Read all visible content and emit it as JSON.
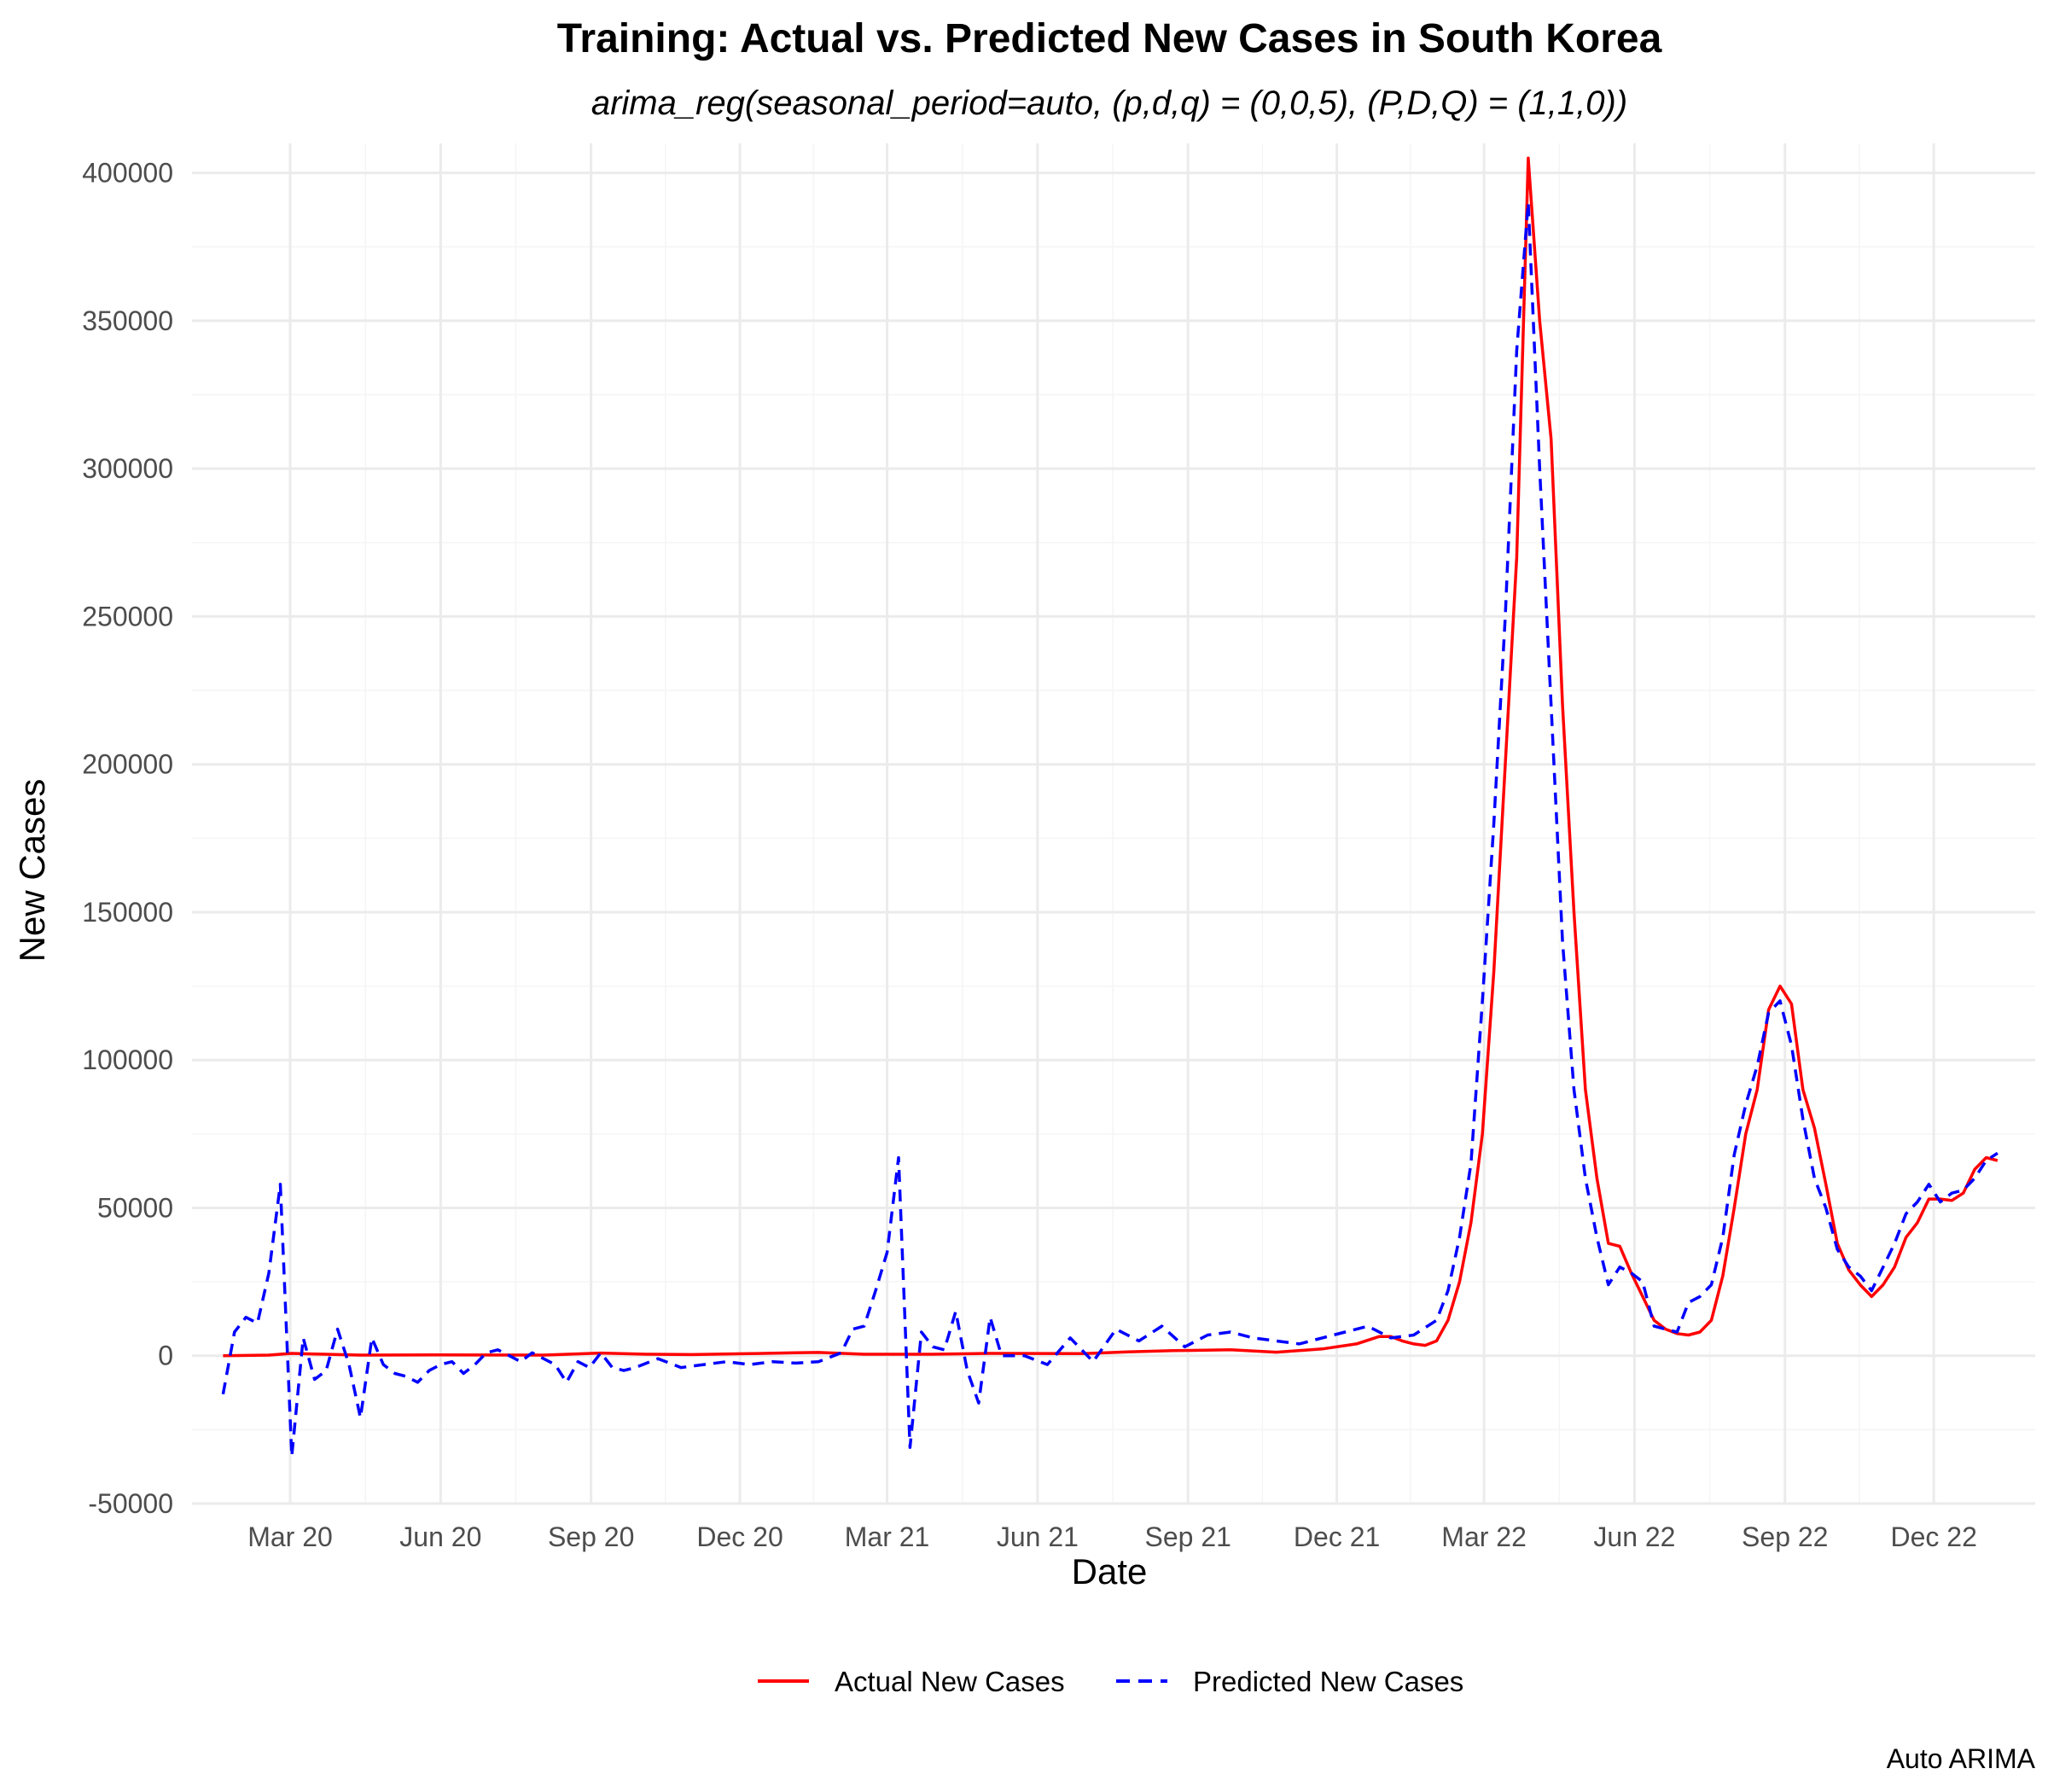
{
  "chart_data": {
    "type": "line",
    "title": "Training: Actual vs. Predicted New Cases in South Korea",
    "subtitle": "arima_reg(seasonal_period=auto, (p,d,q) = (0,0,5), (P,D,Q) = (1,1,0))",
    "xlabel": "Date",
    "ylabel": "New Cases",
    "caption": "Auto ARIMA",
    "x_ticks": [
      "Mar 20",
      "Jun 20",
      "Sep 20",
      "Dec 20",
      "Mar 21",
      "Jun 21",
      "Sep 21",
      "Dec 21",
      "Mar 22",
      "Jun 22",
      "Sep 22",
      "Dec 22"
    ],
    "x_tick_dates": [
      "2020-03-01",
      "2020-06-01",
      "2020-09-01",
      "2020-12-01",
      "2021-03-01",
      "2021-06-01",
      "2021-09-01",
      "2021-12-01",
      "2022-03-01",
      "2022-06-01",
      "2022-09-01",
      "2022-12-01"
    ],
    "xlim": [
      "2020-01-01",
      "2023-02-01"
    ],
    "y_ticks": [
      -50000,
      0,
      50000,
      100000,
      150000,
      200000,
      250000,
      300000,
      350000,
      400000
    ],
    "ylim": [
      -50000,
      410000
    ],
    "grid": true,
    "legend_position": "bottom",
    "series": [
      {
        "name": "Actual New Cases",
        "color": "#ff0000",
        "dash": "solid",
        "points": [
          [
            "2020-01-20",
            0
          ],
          [
            "2020-02-17",
            200
          ],
          [
            "2020-03-02",
            800
          ],
          [
            "2020-03-16",
            600
          ],
          [
            "2020-04-13",
            200
          ],
          [
            "2020-06-01",
            300
          ],
          [
            "2020-08-03",
            200
          ],
          [
            "2020-09-07",
            900
          ],
          [
            "2020-10-05",
            500
          ],
          [
            "2020-11-02",
            400
          ],
          [
            "2020-12-07",
            700
          ],
          [
            "2021-01-04",
            1000
          ],
          [
            "2021-01-18",
            1100
          ],
          [
            "2021-02-15",
            500
          ],
          [
            "2021-03-29",
            500
          ],
          [
            "2021-05-03",
            800
          ],
          [
            "2021-06-28",
            700
          ],
          [
            "2021-07-26",
            1300
          ],
          [
            "2021-08-23",
            1700
          ],
          [
            "2021-09-27",
            2000
          ],
          [
            "2021-10-25",
            1200
          ],
          [
            "2021-11-22",
            2300
          ],
          [
            "2021-12-13",
            4000
          ],
          [
            "2021-12-27",
            6500
          ],
          [
            "2022-01-03",
            6500
          ],
          [
            "2022-01-10",
            5000
          ],
          [
            "2022-01-17",
            4000
          ],
          [
            "2022-01-24",
            3500
          ],
          [
            "2022-01-31",
            5000
          ],
          [
            "2022-02-07",
            12000
          ],
          [
            "2022-02-14",
            25000
          ],
          [
            "2022-02-21",
            45000
          ],
          [
            "2022-02-28",
            75000
          ],
          [
            "2022-03-07",
            130000
          ],
          [
            "2022-03-14",
            200000
          ],
          [
            "2022-03-21",
            270000
          ],
          [
            "2022-03-28",
            405000
          ],
          [
            "2022-04-04",
            350000
          ],
          [
            "2022-04-11",
            310000
          ],
          [
            "2022-04-18",
            220000
          ],
          [
            "2022-04-25",
            150000
          ],
          [
            "2022-05-02",
            90000
          ],
          [
            "2022-05-09",
            60000
          ],
          [
            "2022-05-16",
            38000
          ],
          [
            "2022-05-23",
            37000
          ],
          [
            "2022-05-30",
            28000
          ],
          [
            "2022-06-06",
            20000
          ],
          [
            "2022-06-13",
            12000
          ],
          [
            "2022-06-20",
            9000
          ],
          [
            "2022-06-27",
            7500
          ],
          [
            "2022-07-04",
            7000
          ],
          [
            "2022-07-11",
            8000
          ],
          [
            "2022-07-18",
            12000
          ],
          [
            "2022-07-25",
            27000
          ],
          [
            "2022-08-01",
            50000
          ],
          [
            "2022-08-08",
            75000
          ],
          [
            "2022-08-15",
            90000
          ],
          [
            "2022-08-22",
            117000
          ],
          [
            "2022-08-29",
            125000
          ],
          [
            "2022-09-05",
            119000
          ],
          [
            "2022-09-12",
            90000
          ],
          [
            "2022-09-19",
            77000
          ],
          [
            "2022-09-26",
            58000
          ],
          [
            "2022-10-03",
            38000
          ],
          [
            "2022-10-10",
            29000
          ],
          [
            "2022-10-17",
            24000
          ],
          [
            "2022-10-24",
            20000
          ],
          [
            "2022-10-31",
            24000
          ],
          [
            "2022-11-07",
            30000
          ],
          [
            "2022-11-14",
            40000
          ],
          [
            "2022-11-21",
            45000
          ],
          [
            "2022-11-28",
            53000
          ],
          [
            "2022-12-05",
            53000
          ],
          [
            "2022-12-12",
            52500
          ],
          [
            "2022-12-19",
            55000
          ],
          [
            "2022-12-26",
            63000
          ],
          [
            "2023-01-02",
            67000
          ],
          [
            "2023-01-09",
            66000
          ]
        ]
      },
      {
        "name": "Predicted New Cases",
        "color": "#0000ff",
        "dash": "dashed",
        "points": [
          [
            "2020-01-20",
            -13000
          ],
          [
            "2020-01-27",
            8000
          ],
          [
            "2020-02-03",
            13000
          ],
          [
            "2020-02-10",
            11000
          ],
          [
            "2020-02-17",
            28000
          ],
          [
            "2020-02-24",
            58000
          ],
          [
            "2020-03-02",
            -34000
          ],
          [
            "2020-03-09",
            6000
          ],
          [
            "2020-03-16",
            -8000
          ],
          [
            "2020-03-23",
            -5000
          ],
          [
            "2020-03-30",
            9000
          ],
          [
            "2020-04-06",
            -3000
          ],
          [
            "2020-04-13",
            -21000
          ],
          [
            "2020-04-20",
            6000
          ],
          [
            "2020-04-27",
            -3000
          ],
          [
            "2020-05-04",
            -6000
          ],
          [
            "2020-05-11",
            -7000
          ],
          [
            "2020-05-18",
            -9000
          ],
          [
            "2020-05-25",
            -5000
          ],
          [
            "2020-06-01",
            -3000
          ],
          [
            "2020-06-08",
            -2000
          ],
          [
            "2020-06-15",
            -6000
          ],
          [
            "2020-06-22",
            -3000
          ],
          [
            "2020-06-29",
            1000
          ],
          [
            "2020-07-06",
            2000
          ],
          [
            "2020-07-13",
            0
          ],
          [
            "2020-07-20",
            -2000
          ],
          [
            "2020-07-27",
            1000
          ],
          [
            "2020-08-03",
            -1000
          ],
          [
            "2020-08-10",
            -3000
          ],
          [
            "2020-08-17",
            -9000
          ],
          [
            "2020-08-24",
            -2000
          ],
          [
            "2020-08-31",
            -4000
          ],
          [
            "2020-09-07",
            1000
          ],
          [
            "2020-09-14",
            -4000
          ],
          [
            "2020-09-21",
            -5000
          ],
          [
            "2020-09-28",
            -4000
          ],
          [
            "2020-10-12",
            -1000
          ],
          [
            "2020-10-26",
            -4000
          ],
          [
            "2020-11-09",
            -3000
          ],
          [
            "2020-11-23",
            -2000
          ],
          [
            "2020-12-07",
            -3000
          ],
          [
            "2020-12-21",
            -2000
          ],
          [
            "2021-01-04",
            -2500
          ],
          [
            "2021-01-18",
            -2000
          ],
          [
            "2021-02-01",
            1000
          ],
          [
            "2021-02-08",
            9000
          ],
          [
            "2021-02-15",
            10000
          ],
          [
            "2021-02-22",
            22000
          ],
          [
            "2021-03-01",
            35000
          ],
          [
            "2021-03-08",
            67000
          ],
          [
            "2021-03-15",
            -31000
          ],
          [
            "2021-03-22",
            8000
          ],
          [
            "2021-03-29",
            3000
          ],
          [
            "2021-04-05",
            2000
          ],
          [
            "2021-04-12",
            15000
          ],
          [
            "2021-04-19",
            -5000
          ],
          [
            "2021-04-26",
            -16000
          ],
          [
            "2021-05-03",
            13000
          ],
          [
            "2021-05-10",
            0
          ],
          [
            "2021-05-24",
            0
          ],
          [
            "2021-06-07",
            -3000
          ],
          [
            "2021-06-21",
            6000
          ],
          [
            "2021-07-05",
            -2000
          ],
          [
            "2021-07-19",
            9000
          ],
          [
            "2021-08-02",
            5000
          ],
          [
            "2021-08-16",
            10000
          ],
          [
            "2021-08-30",
            3000
          ],
          [
            "2021-09-13",
            7000
          ],
          [
            "2021-09-27",
            8000
          ],
          [
            "2021-10-11",
            6000
          ],
          [
            "2021-10-25",
            5000
          ],
          [
            "2021-11-08",
            4000
          ],
          [
            "2021-11-22",
            6000
          ],
          [
            "2021-12-06",
            8000
          ],
          [
            "2021-12-20",
            10000
          ],
          [
            "2022-01-03",
            6000
          ],
          [
            "2022-01-17",
            7000
          ],
          [
            "2022-01-31",
            12000
          ],
          [
            "2022-02-07",
            22000
          ],
          [
            "2022-02-14",
            40000
          ],
          [
            "2022-02-21",
            65000
          ],
          [
            "2022-02-28",
            120000
          ],
          [
            "2022-03-07",
            180000
          ],
          [
            "2022-03-14",
            250000
          ],
          [
            "2022-03-21",
            340000
          ],
          [
            "2022-03-28",
            390000
          ],
          [
            "2022-04-04",
            300000
          ],
          [
            "2022-04-11",
            220000
          ],
          [
            "2022-04-18",
            140000
          ],
          [
            "2022-04-25",
            90000
          ],
          [
            "2022-05-02",
            60000
          ],
          [
            "2022-05-09",
            40000
          ],
          [
            "2022-05-16",
            24000
          ],
          [
            "2022-05-23",
            30000
          ],
          [
            "2022-05-30",
            28000
          ],
          [
            "2022-06-06",
            25000
          ],
          [
            "2022-06-13",
            10000
          ],
          [
            "2022-06-20",
            9000
          ],
          [
            "2022-06-27",
            8000
          ],
          [
            "2022-07-04",
            18000
          ],
          [
            "2022-07-11",
            20000
          ],
          [
            "2022-07-18",
            24000
          ],
          [
            "2022-07-25",
            40000
          ],
          [
            "2022-08-01",
            68000
          ],
          [
            "2022-08-08",
            85000
          ],
          [
            "2022-08-15",
            98000
          ],
          [
            "2022-08-22",
            116000
          ],
          [
            "2022-08-29",
            120000
          ],
          [
            "2022-09-05",
            105000
          ],
          [
            "2022-09-12",
            80000
          ],
          [
            "2022-09-19",
            60000
          ],
          [
            "2022-09-26",
            50000
          ],
          [
            "2022-10-03",
            36000
          ],
          [
            "2022-10-10",
            30000
          ],
          [
            "2022-10-17",
            27000
          ],
          [
            "2022-10-24",
            22000
          ],
          [
            "2022-10-31",
            30000
          ],
          [
            "2022-11-07",
            38000
          ],
          [
            "2022-11-14",
            48000
          ],
          [
            "2022-11-21",
            52000
          ],
          [
            "2022-11-28",
            58000
          ],
          [
            "2022-12-05",
            52000
          ],
          [
            "2022-12-12",
            55000
          ],
          [
            "2022-12-19",
            56000
          ],
          [
            "2022-12-26",
            60000
          ],
          [
            "2023-01-02",
            66000
          ],
          [
            "2023-01-09",
            68500
          ]
        ]
      }
    ]
  }
}
